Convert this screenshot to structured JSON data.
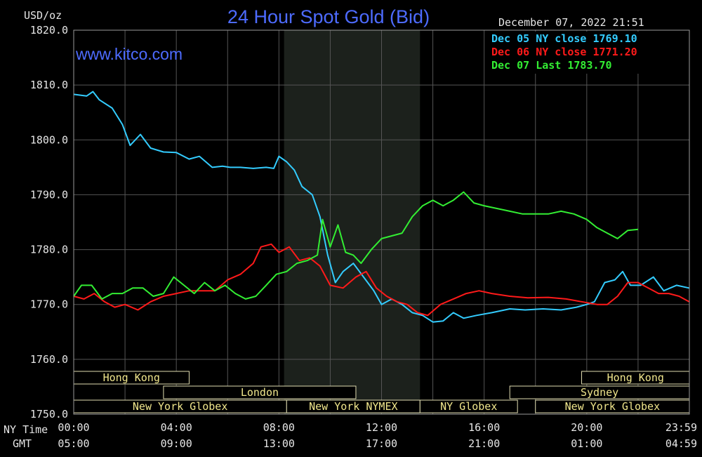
{
  "chart_data": {
    "type": "line",
    "title": "24 Hour Spot Gold (Bid)",
    "watermark": "www.kitco.com",
    "unit_label": "USD/oz",
    "timestamp": "December 07, 2022 21:51",
    "ylim": [
      1750,
      1820
    ],
    "y_ticks": [
      "1820.0",
      "1810.0",
      "1800.0",
      "1790.0",
      "1780.0",
      "1770.0",
      "1760.0",
      "1750.0"
    ],
    "x_row_labels": [
      "NY Time",
      "GMT"
    ],
    "x_ticks_ny": [
      "00:00",
      "04:00",
      "08:00",
      "12:00",
      "16:00",
      "20:00",
      "23:59"
    ],
    "x_ticks_gmt": [
      "05:00",
      "09:00",
      "13:00",
      "17:00",
      "21:00",
      "01:00",
      "04:59"
    ],
    "grid": true,
    "shaded_hours": [
      8.2,
      13.5
    ],
    "legend_position": "top-right",
    "sessions": [
      {
        "label": "Hong Kong",
        "start": 0,
        "end": 4.5,
        "row": 0
      },
      {
        "label": "Hong Kong",
        "start": 19.8,
        "end": 24,
        "row": 0
      },
      {
        "label": "London",
        "start": 3.5,
        "end": 11.0,
        "row": 1
      },
      {
        "label": "Sydney",
        "start": 17.0,
        "end": 24,
        "row": 1
      },
      {
        "label": "New York Globex",
        "start": 0,
        "end": 8.3,
        "row": 2
      },
      {
        "label": "New York NYMEX",
        "start": 8.3,
        "end": 13.5,
        "row": 2
      },
      {
        "label": "NY Globex",
        "start": 13.5,
        "end": 17.3,
        "row": 2
      },
      {
        "label": "New York Globex",
        "start": 18.0,
        "end": 24,
        "row": 2
      }
    ],
    "series": [
      {
        "name": "Dec 05 NY close 1769.10",
        "color": "#33ccff",
        "x": [
          0,
          0.5,
          0.75,
          1,
          1.5,
          1.9,
          2.2,
          2.6,
          3.0,
          3.5,
          4.0,
          4.5,
          4.9,
          5.4,
          5.8,
          6.1,
          6.5,
          7.0,
          7.5,
          7.8,
          8.0,
          8.3,
          8.6,
          8.9,
          9.3,
          9.6,
          9.9,
          10.2,
          10.5,
          10.9,
          11.3,
          11.7,
          12.0,
          12.4,
          12.8,
          13.2,
          13.6,
          14.0,
          14.4,
          14.8,
          15.2,
          15.7,
          16.3,
          17.0,
          17.6,
          18.3,
          19.0,
          19.6,
          20.0,
          20.3,
          20.7,
          21.1,
          21.4,
          21.7,
          22.1,
          22.6,
          23.0,
          23.5,
          23.99
        ],
        "y": [
          1808.3,
          1808.0,
          1808.8,
          1807.3,
          1805.8,
          1802.8,
          1799.0,
          1801.0,
          1798.5,
          1797.8,
          1797.7,
          1796.5,
          1797.0,
          1795.0,
          1795.2,
          1795.0,
          1795.0,
          1794.8,
          1795.0,
          1794.8,
          1797.0,
          1796.0,
          1794.5,
          1791.5,
          1790.0,
          1786.0,
          1779.0,
          1774.0,
          1776.0,
          1777.5,
          1775.0,
          1772.5,
          1770.0,
          1771.0,
          1770.0,
          1768.5,
          1768.0,
          1766.8,
          1767.0,
          1768.5,
          1767.5,
          1768.0,
          1768.5,
          1769.2,
          1769.0,
          1769.2,
          1769.0,
          1769.5,
          1770.0,
          1770.5,
          1774.0,
          1774.5,
          1776.0,
          1773.5,
          1773.5,
          1775.0,
          1772.5,
          1773.5,
          1773.0
        ]
      },
      {
        "name": "Dec 06 NY close 1771.20",
        "color": "#ff1a1a",
        "x": [
          0,
          0.4,
          0.8,
          1.2,
          1.6,
          2.0,
          2.5,
          3.0,
          3.5,
          4.0,
          4.5,
          5.0,
          5.5,
          6.0,
          6.5,
          7.0,
          7.3,
          7.7,
          8.0,
          8.4,
          8.8,
          9.2,
          9.6,
          10.0,
          10.5,
          11.0,
          11.4,
          11.8,
          12.2,
          12.6,
          13.0,
          13.4,
          13.8,
          14.3,
          14.8,
          15.3,
          15.8,
          16.3,
          17.0,
          17.7,
          18.5,
          19.2,
          19.8,
          20.4,
          20.8,
          21.2,
          21.6,
          22.0,
          22.4,
          22.8,
          23.2,
          23.6,
          23.99
        ],
        "y": [
          1771.5,
          1771.0,
          1772.0,
          1770.5,
          1769.5,
          1770.0,
          1769.0,
          1770.5,
          1771.5,
          1772.0,
          1772.5,
          1772.5,
          1772.5,
          1774.5,
          1775.5,
          1777.5,
          1780.5,
          1781.0,
          1779.5,
          1780.5,
          1778.0,
          1778.5,
          1777.0,
          1773.5,
          1773.0,
          1775.0,
          1776.0,
          1773.0,
          1771.5,
          1770.5,
          1770.0,
          1768.5,
          1768.0,
          1770.0,
          1771.0,
          1772.0,
          1772.5,
          1772.0,
          1771.5,
          1771.2,
          1771.3,
          1771.0,
          1770.5,
          1770.0,
          1770.0,
          1771.5,
          1774.0,
          1774.0,
          1773.0,
          1772.0,
          1772.0,
          1771.5,
          1770.5
        ]
      },
      {
        "name": "Dec 07 Last 1783.70",
        "color": "#33ee33",
        "x": [
          0,
          0.3,
          0.7,
          1.1,
          1.5,
          1.9,
          2.3,
          2.7,
          3.1,
          3.5,
          3.9,
          4.3,
          4.7,
          5.1,
          5.5,
          5.9,
          6.3,
          6.7,
          7.1,
          7.5,
          7.9,
          8.3,
          8.7,
          9.1,
          9.5,
          9.7,
          10.0,
          10.3,
          10.6,
          10.9,
          11.2,
          11.6,
          12.0,
          12.4,
          12.8,
          13.2,
          13.6,
          14.0,
          14.4,
          14.8,
          15.2,
          15.6,
          16.0,
          16.5,
          17.0,
          17.5,
          18.0,
          18.5,
          19.0,
          19.5,
          20.0,
          20.4,
          20.8,
          21.2,
          21.6,
          22.0
        ],
        "y": [
          1771.5,
          1773.5,
          1773.5,
          1771.0,
          1772.0,
          1772.0,
          1773.0,
          1773.0,
          1771.5,
          1772.0,
          1775.0,
          1773.5,
          1772.0,
          1774.0,
          1772.5,
          1773.5,
          1772.0,
          1771.0,
          1771.5,
          1773.5,
          1775.5,
          1776.0,
          1777.5,
          1778.0,
          1779.0,
          1785.5,
          1780.5,
          1784.5,
          1779.5,
          1779.0,
          1777.5,
          1780.0,
          1782.0,
          1782.5,
          1783.0,
          1786.0,
          1788.0,
          1789.0,
          1788.0,
          1789.0,
          1790.5,
          1788.5,
          1788.0,
          1787.5,
          1787.0,
          1786.5,
          1786.5,
          1786.5,
          1787.0,
          1786.5,
          1785.5,
          1784.0,
          1783.0,
          1782.0,
          1783.5,
          1783.7
        ]
      }
    ]
  }
}
